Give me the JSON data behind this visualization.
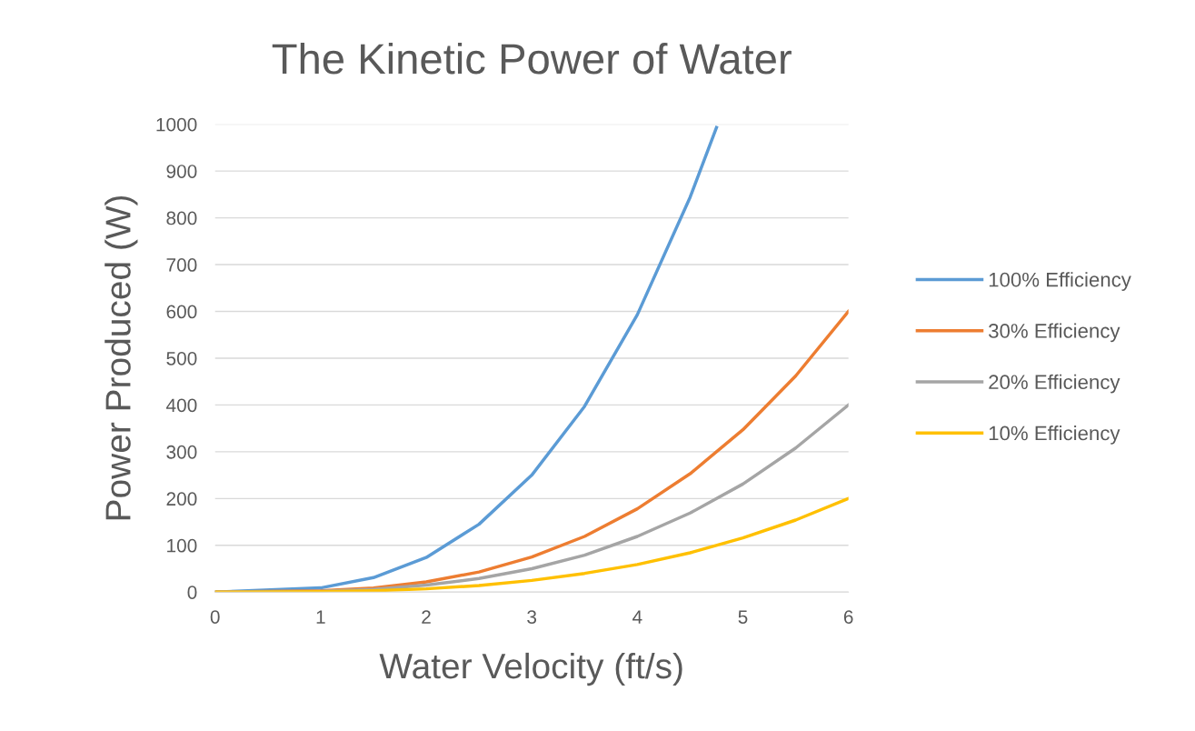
{
  "chart_data": {
    "type": "line",
    "title": "The Kinetic Power of Water",
    "xlabel": "Water Velocity (ft/s)",
    "ylabel": "Power Produced (W)",
    "xlim": [
      0,
      6
    ],
    "xticks": [
      0,
      1,
      2,
      3,
      4,
      5,
      6
    ],
    "ylim": [
      0,
      1000
    ],
    "yticks": [
      0,
      100,
      200,
      300,
      400,
      500,
      600,
      700,
      800,
      900,
      1000
    ],
    "grid": "y",
    "legend": "right",
    "marker": "none",
    "line_style": "solid",
    "series": [
      {
        "name": "100% Efficiency",
        "color": "#5b9bd5",
        "x": [
          0,
          1,
          1.5,
          2,
          2.5,
          3,
          3.5,
          4,
          4.5,
          4.75
        ],
        "values": [
          0,
          9,
          31,
          74,
          145,
          250,
          397,
          593,
          844,
          993
        ]
      },
      {
        "name": "30% Efficiency",
        "color": "#ed7d31",
        "x": [
          0,
          1,
          1.5,
          2,
          2.5,
          3,
          3.5,
          4,
          4.5,
          5,
          5.5,
          6
        ],
        "values": [
          0,
          3,
          9,
          22,
          43,
          75,
          119,
          178,
          253,
          347,
          462,
          600
        ]
      },
      {
        "name": "20% Efficiency",
        "color": "#a5a5a5",
        "x": [
          0,
          1,
          1.5,
          2,
          2.5,
          3,
          3.5,
          4,
          4.5,
          5,
          5.5,
          6
        ],
        "values": [
          0,
          2,
          6,
          15,
          29,
          50,
          79,
          119,
          169,
          231,
          308,
          400
        ]
      },
      {
        "name": "10% Efficiency",
        "color": "#ffc000",
        "x": [
          0,
          1,
          1.5,
          2,
          2.5,
          3,
          3.5,
          4,
          4.5,
          5,
          5.5,
          6
        ],
        "values": [
          0,
          1,
          3,
          7,
          14,
          25,
          40,
          59,
          84,
          116,
          154,
          200
        ]
      }
    ]
  }
}
